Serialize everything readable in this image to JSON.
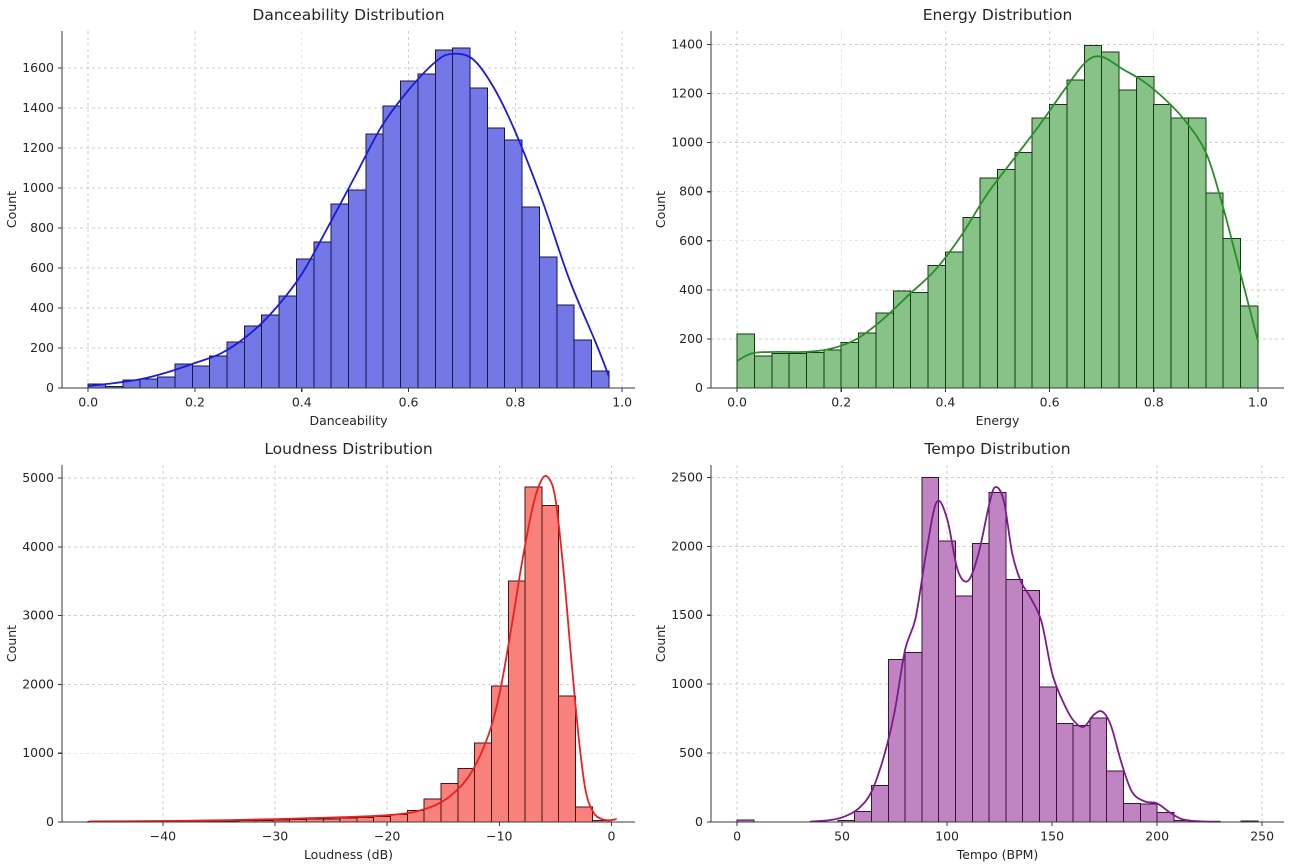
{
  "figure": {
    "background": "#ffffff",
    "grid_color": "#cfcfcf",
    "spine_color": "#3a3a3a",
    "text_color": "#262626"
  },
  "chart_data": [
    {
      "type": "bar",
      "subtype": "histogram-with-kde",
      "title": "Danceability Distribution",
      "xlabel": "Danceability",
      "ylabel": "Count",
      "bin_start": 0.0,
      "bin_width": 0.0325,
      "values": [
        20,
        8,
        40,
        45,
        55,
        120,
        110,
        160,
        230,
        310,
        365,
        460,
        645,
        730,
        920,
        990,
        1270,
        1410,
        1535,
        1570,
        1690,
        1700,
        1500,
        1300,
        1240,
        905,
        655,
        415,
        240,
        85
      ],
      "kde_x": [
        0.0,
        0.05,
        0.1,
        0.15,
        0.2,
        0.25,
        0.3,
        0.35,
        0.4,
        0.45,
        0.5,
        0.55,
        0.6,
        0.65,
        0.68,
        0.72,
        0.76,
        0.8,
        0.85,
        0.9,
        0.95,
        0.975
      ],
      "kde_y": [
        10,
        25,
        45,
        80,
        125,
        175,
        265,
        395,
        570,
        810,
        1060,
        1310,
        1490,
        1630,
        1670,
        1645,
        1500,
        1280,
        940,
        550,
        230,
        60
      ],
      "xlim": [
        -0.049,
        1.024
      ],
      "ylim": [
        0,
        1785
      ],
      "xtick_vals": [
        0.0,
        0.2,
        0.4,
        0.6,
        0.8,
        1.0
      ],
      "xtick_labels": [
        "0.0",
        "0.2",
        "0.4",
        "0.6",
        "0.8",
        "1.0"
      ],
      "ytick_vals": [
        0,
        200,
        400,
        600,
        800,
        1000,
        1200,
        1400,
        1600
      ],
      "ytick_labels": [
        "0",
        "200",
        "400",
        "600",
        "800",
        "1000",
        "1200",
        "1400",
        "1600"
      ],
      "grid": true,
      "legend": "none",
      "colors": {
        "fill": "#7477e6",
        "edge": "#16164a",
        "kde": "#1c1cd6"
      }
    },
    {
      "type": "bar",
      "subtype": "histogram-with-kde",
      "title": "Energy Distribution",
      "xlabel": "Energy",
      "ylabel": "Count",
      "bin_start": 0.0,
      "bin_width": 0.03333,
      "values": [
        220,
        130,
        140,
        140,
        145,
        155,
        185,
        225,
        305,
        395,
        390,
        500,
        555,
        695,
        855,
        890,
        960,
        1100,
        1155,
        1255,
        1395,
        1370,
        1215,
        1270,
        1155,
        1100,
        1100,
        795,
        610,
        335
      ],
      "kde_x": [
        0.0,
        0.03,
        0.08,
        0.13,
        0.18,
        0.23,
        0.28,
        0.33,
        0.38,
        0.43,
        0.48,
        0.53,
        0.58,
        0.63,
        0.67,
        0.7,
        0.74,
        0.78,
        0.82,
        0.86,
        0.9,
        0.93,
        0.96,
        1.0
      ],
      "kde_y": [
        110,
        142,
        147,
        147,
        160,
        200,
        280,
        380,
        480,
        620,
        790,
        930,
        1070,
        1220,
        1330,
        1350,
        1300,
        1250,
        1180,
        1090,
        960,
        760,
        520,
        190
      ],
      "xlim": [
        -0.05,
        1.05
      ],
      "ylim": [
        0,
        1455
      ],
      "xtick_vals": [
        0.0,
        0.2,
        0.4,
        0.6,
        0.8,
        1.0
      ],
      "xtick_labels": [
        "0.0",
        "0.2",
        "0.4",
        "0.6",
        "0.8",
        "1.0"
      ],
      "ytick_vals": [
        0,
        200,
        400,
        600,
        800,
        1000,
        1200,
        1400
      ],
      "ytick_labels": [
        "0",
        "200",
        "400",
        "600",
        "800",
        "1000",
        "1200",
        "1400"
      ],
      "grid": true,
      "legend": "none",
      "colors": {
        "fill": "#87c287",
        "edge": "#123a12",
        "kde": "#2a8c2a"
      }
    },
    {
      "type": "bar",
      "subtype": "histogram-with-kde",
      "title": "Loudness Distribution",
      "xlabel": "Loudness (dB)",
      "ylabel": "Count",
      "bin_start": -46.7,
      "bin_width": 1.5,
      "values": [
        8,
        5,
        5,
        6,
        8,
        10,
        12,
        15,
        18,
        20,
        25,
        30,
        35,
        40,
        45,
        55,
        65,
        80,
        110,
        165,
        335,
        560,
        775,
        1150,
        1980,
        3500,
        4870,
        4600,
        1830,
        220,
        20
      ],
      "kde_x": [
        -46.5,
        -42,
        -38,
        -34,
        -30,
        -27,
        -24,
        -21.5,
        -19.5,
        -17.5,
        -15.5,
        -14,
        -12.5,
        -11,
        -10,
        -9,
        -8,
        -7,
        -6.2,
        -5.6,
        -5,
        -4.3,
        -3.6,
        -2.9,
        -2.3,
        -1.6,
        -0.9,
        -0.2,
        0.4
      ],
      "kde_y": [
        8,
        12,
        18,
        28,
        42,
        55,
        70,
        85,
        105,
        150,
        260,
        430,
        720,
        1250,
        1850,
        2750,
        3750,
        4600,
        4980,
        5000,
        4700,
        3700,
        2400,
        1200,
        450,
        140,
        45,
        25,
        40
      ],
      "xlim": [
        -49.0,
        2.1
      ],
      "ylim": [
        0,
        5190
      ],
      "xtick_vals": [
        -40,
        -30,
        -20,
        -10,
        0
      ],
      "xtick_labels": [
        "−40",
        "−30",
        "−20",
        "−10",
        "0"
      ],
      "ytick_vals": [
        0,
        1000,
        2000,
        3000,
        4000,
        5000
      ],
      "ytick_labels": [
        "0",
        "1000",
        "2000",
        "3000",
        "4000",
        "5000"
      ],
      "grid": true,
      "legend": "none",
      "colors": {
        "fill": "#f8817b",
        "edge": "#4a1212",
        "kde": "#e62222"
      }
    },
    {
      "type": "bar",
      "subtype": "histogram-with-kde",
      "title": "Tempo Distribution",
      "xlabel": "Tempo (BPM)",
      "ylabel": "Count",
      "bin_start": 0,
      "bin_width": 8,
      "values": [
        15,
        0,
        0,
        0,
        0,
        0,
        10,
        75,
        265,
        1180,
        1230,
        2500,
        2040,
        1640,
        2020,
        2390,
        1760,
        1680,
        980,
        715,
        700,
        755,
        370,
        135,
        130,
        70,
        10,
        0,
        0,
        0,
        8
      ],
      "kde_x": [
        35,
        45,
        52,
        58,
        64,
        70,
        75,
        80,
        85,
        90,
        95,
        100,
        105,
        110,
        115,
        120,
        123,
        127,
        131,
        135,
        140,
        145,
        150,
        155,
        160,
        165,
        170,
        174,
        178,
        183,
        188,
        194,
        200,
        206,
        212,
        220,
        230
      ],
      "kde_y": [
        3,
        15,
        45,
        100,
        220,
        480,
        800,
        1250,
        1480,
        1950,
        2320,
        2200,
        1830,
        1750,
        1950,
        2300,
        2430,
        2330,
        1950,
        1750,
        1620,
        1450,
        1080,
        880,
        740,
        690,
        780,
        800,
        700,
        430,
        220,
        150,
        135,
        70,
        20,
        5,
        2
      ],
      "xlim": [
        -12.4,
        260.4
      ],
      "ylim": [
        0,
        2590
      ],
      "xtick_vals": [
        0,
        50,
        100,
        150,
        200,
        250
      ],
      "xtick_labels": [
        "0",
        "50",
        "100",
        "150",
        "200",
        "250"
      ],
      "ytick_vals": [
        0,
        500,
        1000,
        1500,
        2000,
        2500
      ],
      "ytick_labels": [
        "0",
        "500",
        "1000",
        "1500",
        "2000",
        "2500"
      ],
      "grid": true,
      "legend": "none",
      "colors": {
        "fill": "#c084c2",
        "edge": "#3a123a",
        "kde": "#7d1b8c"
      }
    }
  ]
}
